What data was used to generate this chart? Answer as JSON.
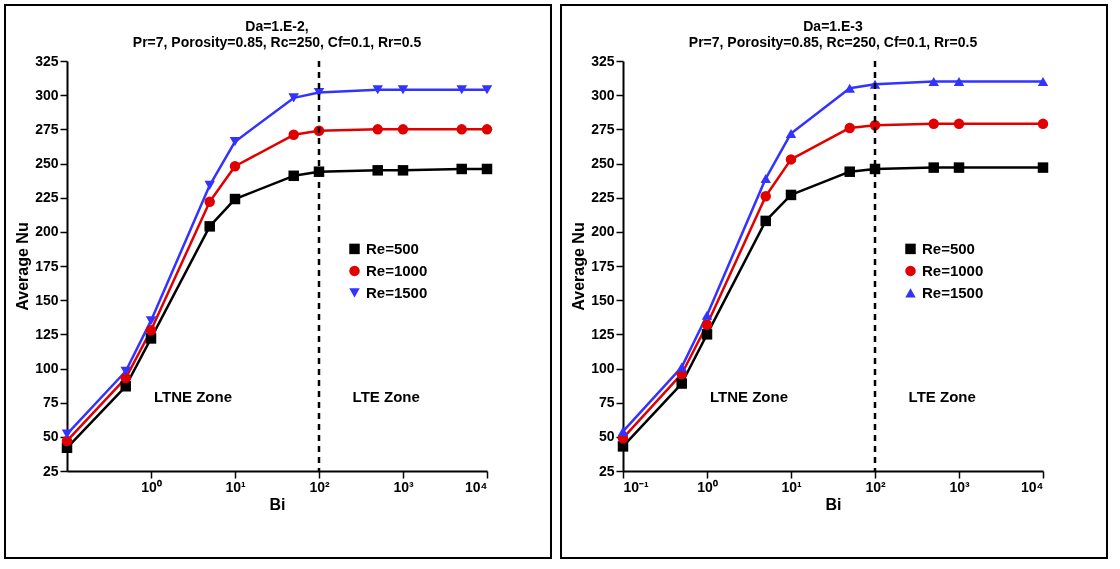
{
  "chart_data": [
    {
      "type": "line",
      "title": "Da=1.E-2,",
      "subtitle": "Pr=7,  Porosity=0.85,  Rc=250,  Cf=0.1,  Rr=0.5",
      "xlabel": "Bi",
      "ylabel": "Average Nu",
      "log": "x",
      "xlim": [
        0.1,
        10000
      ],
      "xticks": [
        {
          "value": 1,
          "label": "10⁰"
        },
        {
          "value": 10,
          "label": "10¹"
        },
        {
          "value": 100,
          "label": "10²"
        },
        {
          "value": 1000,
          "label": "10³"
        },
        {
          "value": 10000,
          "label": "10⁴"
        }
      ],
      "ylim": [
        25,
        325
      ],
      "yticks": [
        25,
        50,
        75,
        100,
        125,
        150,
        175,
        200,
        225,
        250,
        275,
        300,
        325
      ],
      "x": [
        0.1,
        0.5,
        1,
        5,
        10,
        50,
        100,
        500,
        1000,
        5000,
        10000
      ],
      "series": [
        {
          "name": "Re=500",
          "color": "#000000",
          "marker": "square",
          "values": [
            42,
            87,
            122,
            204,
            224,
            241,
            244,
            245,
            245,
            246,
            246
          ]
        },
        {
          "name": "Re=1000",
          "color": "#e00000",
          "marker": "circle",
          "values": [
            47,
            93,
            128,
            222,
            248,
            271,
            274,
            275,
            275,
            275,
            275
          ]
        },
        {
          "name": "Re=1500",
          "color": "#3333ff",
          "marker": "triangle-down",
          "values": [
            52,
            98,
            135,
            234,
            266,
            298,
            302,
            304,
            304,
            304,
            304
          ]
        }
      ],
      "ref_lines": [
        {
          "axis": "x",
          "value": 100,
          "color": "#000000",
          "line_style": "dashed"
        }
      ],
      "annotations": [
        "LTNE Zone",
        "LTE Zone"
      ],
      "legend": "right",
      "tick_labels": true,
      "line_style": "solid"
    },
    {
      "type": "line",
      "title": "Da=1.E-3",
      "subtitle": "Pr=7,  Porosity=0.85,  Rc=250,  Cf=0.1,  Rr=0.5",
      "xlabel": "Bi",
      "ylabel": "Average Nu",
      "log": "x",
      "xlim": [
        0.1,
        10000
      ],
      "xticks": [
        {
          "value": 0.1,
          "label": "10⁻¹"
        },
        {
          "value": 1,
          "label": "10⁰"
        },
        {
          "value": 10,
          "label": "10¹"
        },
        {
          "value": 100,
          "label": "10²"
        },
        {
          "value": 1000,
          "label": "10³"
        },
        {
          "value": 10000,
          "label": "10⁴"
        }
      ],
      "ylim": [
        25,
        325
      ],
      "yticks": [
        25,
        50,
        75,
        100,
        125,
        150,
        175,
        200,
        225,
        250,
        275,
        300,
        325
      ],
      "x": [
        0.1,
        0.5,
        1,
        5,
        10,
        50,
        100,
        500,
        1000,
        10000
      ],
      "series": [
        {
          "name": "Re=500",
          "color": "#000000",
          "marker": "square",
          "values": [
            43,
            89,
            125,
            208,
            227,
            244,
            246,
            247,
            247,
            247
          ]
        },
        {
          "name": "Re=1000",
          "color": "#e00000",
          "marker": "circle",
          "values": [
            49,
            96,
            132,
            226,
            253,
            276,
            278,
            279,
            279,
            279
          ]
        },
        {
          "name": "Re=1500",
          "color": "#3333ff",
          "marker": "triangle",
          "values": [
            54,
            101,
            139,
            239,
            272,
            305,
            308,
            310,
            310,
            310
          ]
        }
      ],
      "ref_lines": [
        {
          "axis": "x",
          "value": 100,
          "color": "#000000",
          "line_style": "dashed"
        }
      ],
      "annotations": [
        "LTNE Zone",
        "LTE Zone"
      ],
      "legend": "right",
      "tick_labels": true,
      "line_style": "solid"
    }
  ]
}
